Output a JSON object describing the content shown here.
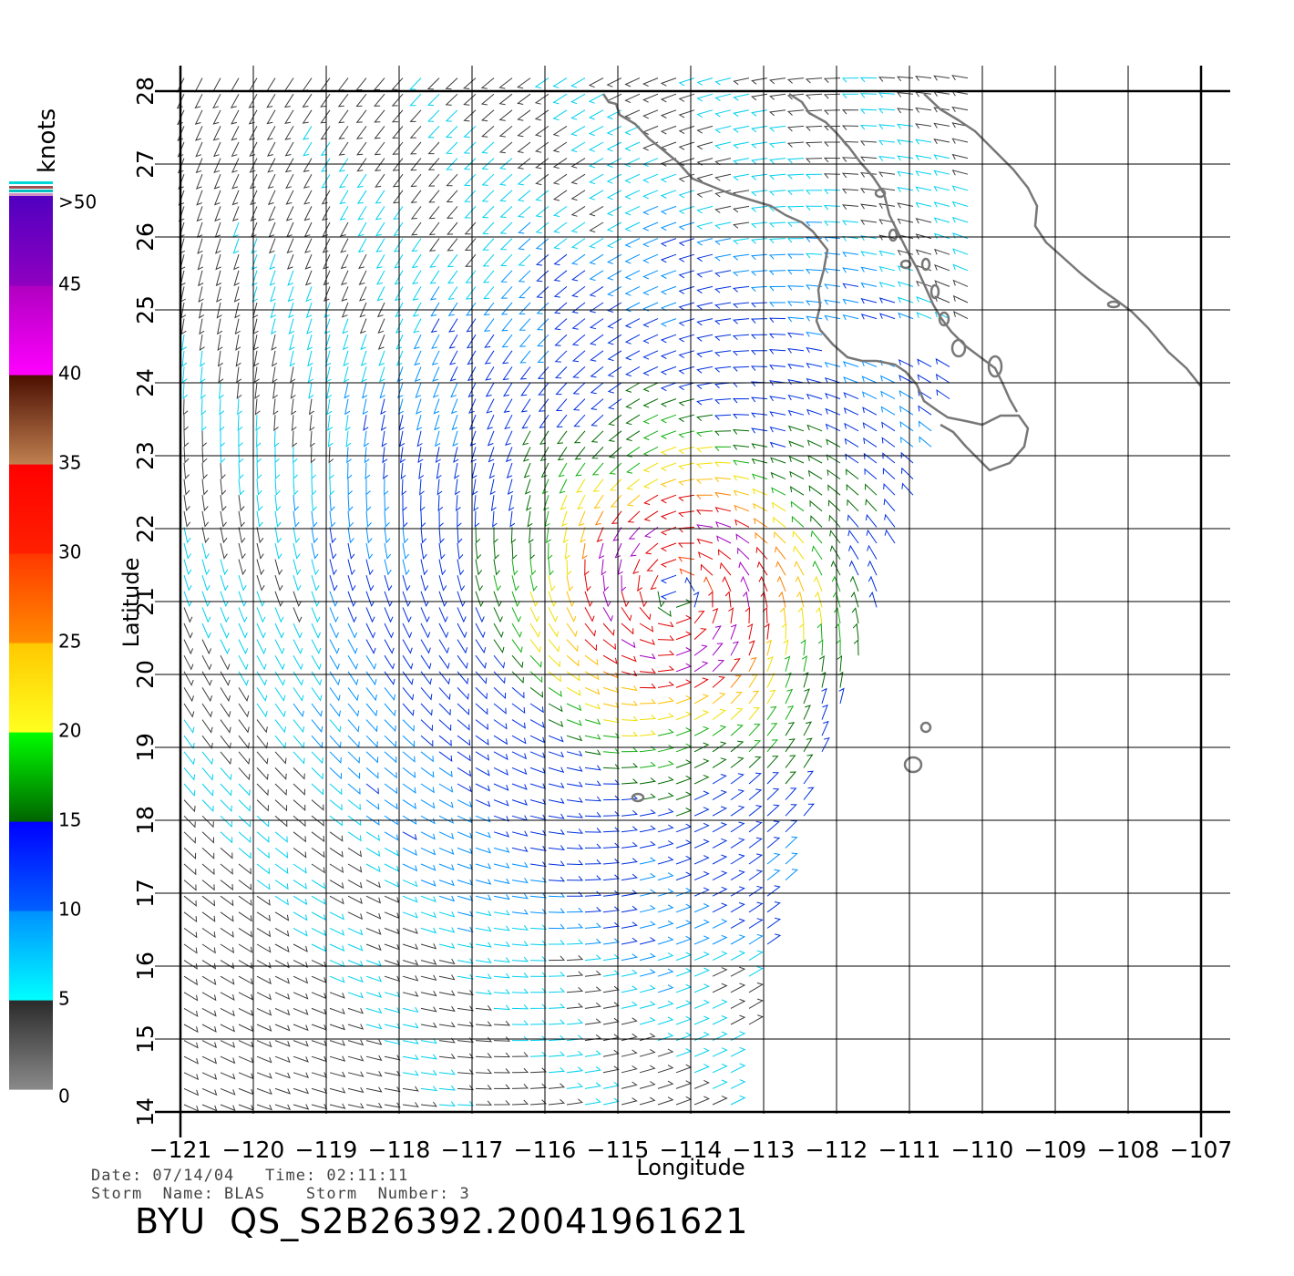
{
  "map": {
    "xlabel": "Longitude",
    "ylabel": "Latitude",
    "lon_range": [
      -121,
      -106.6
    ],
    "lat_range": [
      14,
      28.5
    ],
    "lon_ticks": [
      "-121",
      "-120",
      "-119",
      "-118",
      "-117",
      "-116",
      "-115",
      "-114",
      "-113",
      "-112",
      "-111",
      "-110",
      "-109",
      "-108",
      "-107"
    ],
    "lat_ticks": [
      "14",
      "15",
      "16",
      "17",
      "18",
      "19",
      "20",
      "21",
      "22",
      "23",
      "24",
      "25",
      "26",
      "27",
      "28"
    ],
    "grid": true,
    "storm_center": {
      "lon": -114.2,
      "lat": 21.1
    }
  },
  "colorbar": {
    "unit_label": "knots",
    "tick_labels": [
      "0",
      "5",
      "10",
      "15",
      "20",
      "25",
      "30",
      "35",
      "40",
      "45",
      ">50"
    ],
    "bands": [
      {
        "from": 0,
        "to": 5,
        "top": "#2a2a2a",
        "bottom": "#8a8a8a"
      },
      {
        "from": 5,
        "to": 10,
        "top": "#0090ff",
        "bottom": "#00ffff"
      },
      {
        "from": 10,
        "to": 15,
        "top": "#0000ff",
        "bottom": "#0060ff"
      },
      {
        "from": 15,
        "to": 20,
        "top": "#00ff00",
        "bottom": "#006400"
      },
      {
        "from": 20,
        "to": 25,
        "top": "#ffc800",
        "bottom": "#ffff20"
      },
      {
        "from": 25,
        "to": 30,
        "top": "#ff3800",
        "bottom": "#ff8c00"
      },
      {
        "from": 30,
        "to": 35,
        "top": "#ff0000",
        "bottom": "#ff2000"
      },
      {
        "from": 35,
        "to": 40,
        "top": "#4a0e00",
        "bottom": "#c08050"
      },
      {
        "from": 40,
        "to": 45,
        "top": "#b000c0",
        "bottom": "#ff00ff"
      },
      {
        "from": 45,
        "to": 50,
        "top": "#5000c0",
        "bottom": "#9000c0"
      }
    ]
  },
  "captions": {
    "line1": "Date: 07/14/04   Time: 02:11:11",
    "line2": "Storm  Name: BLAS    Storm  Number: 3",
    "title": "BYU  QS_S2B26392.20041961621"
  }
}
